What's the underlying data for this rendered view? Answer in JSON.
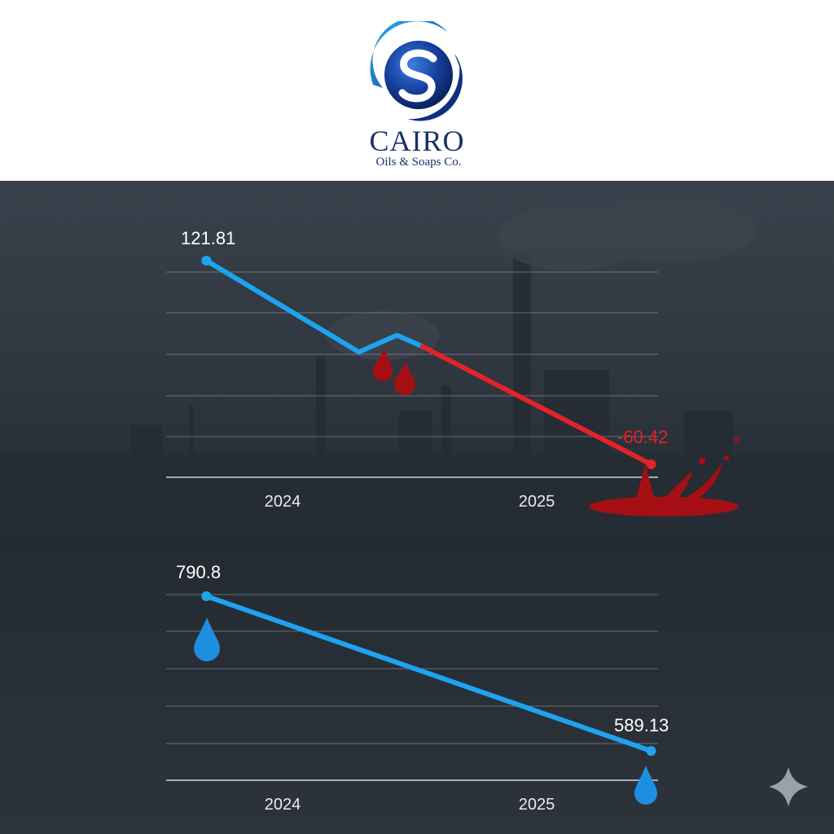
{
  "header": {
    "company_name": "CAIRO",
    "company_subtitle": "Oils & Soaps Co.",
    "logo_letter": "S"
  },
  "colors": {
    "line_blue": "#1ea3f0",
    "line_red": "#e3222a",
    "blood": "#a50f14",
    "brand": "#1b2f6b"
  },
  "chart_data": [
    {
      "type": "line",
      "title": "",
      "xlabel": "",
      "ylabel": "",
      "categories": [
        "2024",
        "2025"
      ],
      "x": [
        2023.7,
        2024.3,
        2024.45,
        2024.55,
        2025.45
      ],
      "series": [
        {
          "values": [
            121.81,
            40,
            55,
            45,
            -60.42
          ]
        }
      ],
      "data_labels": {
        "first": "121.81",
        "last": "-60.42"
      },
      "segment_colors": [
        "#1ea3f0",
        "#1ea3f0",
        "#1ea3f0",
        "#e3222a"
      ],
      "ylim": [
        -60.42,
        121.81
      ],
      "grid": true,
      "legend": "none"
    },
    {
      "type": "line",
      "title": "",
      "xlabel": "",
      "ylabel": "",
      "categories": [
        "2024",
        "2025"
      ],
      "x": [
        2023.7,
        2025.45
      ],
      "series": [
        {
          "values": [
            790.8,
            589.13
          ]
        }
      ],
      "data_labels": {
        "first": "790.8",
        "last": "589.13"
      },
      "ylim": [
        589.13,
        790.8
      ],
      "grid": true,
      "legend": "none"
    }
  ]
}
